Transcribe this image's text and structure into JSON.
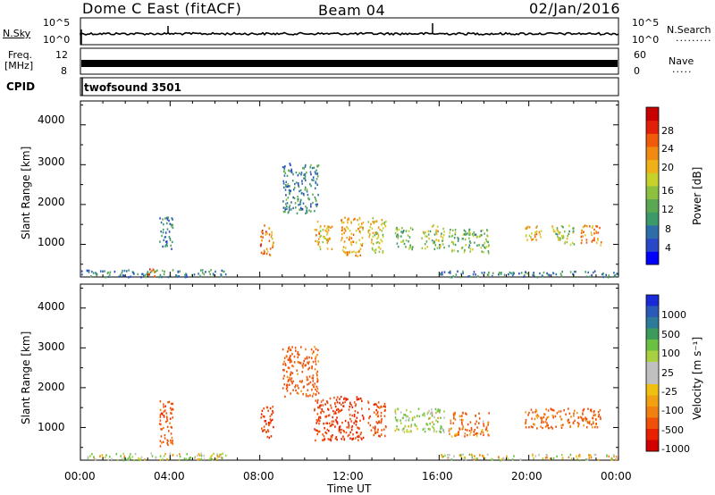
{
  "header": {
    "station": "Dome C East (fitACF)",
    "beam": "Beam 04",
    "date": "02/Jan/2016"
  },
  "noise_panel": {
    "left_label": "N.Sky",
    "left_ticks": [
      "10^5",
      "10^0"
    ],
    "right_label": "N.Search",
    "right_ticks": [
      "10^5",
      "10^0"
    ]
  },
  "freq_panel": {
    "left_label_1": "Freq.",
    "left_label_2": "[MHz]",
    "left_ticks": [
      "12",
      "8"
    ],
    "right_label": "Nave",
    "right_ticks": [
      "60",
      "0"
    ]
  },
  "cpid_panel": {
    "label": "CPID",
    "program": "twofsound 3501"
  },
  "power_panel": {
    "ylabel": "Slant Range [km]",
    "yticks": [
      "4000",
      "3000",
      "2000",
      "1000"
    ],
    "colorbar_label": "Power [dB]",
    "colorbar_ticks": [
      "28",
      "24",
      "20",
      "16",
      "12",
      "8",
      "4"
    ],
    "colorbar_colors": [
      "#0000ff",
      "#2848c8",
      "#2e6ea8",
      "#3c9a6a",
      "#5aa852",
      "#8cc040",
      "#c6d22a",
      "#f0b018",
      "#f08a10",
      "#f05a08",
      "#e02008",
      "#c80000"
    ]
  },
  "velocity_panel": {
    "ylabel": "Slant Range [km]",
    "yticks": [
      "4000",
      "3000",
      "2000",
      "1000"
    ],
    "colorbar_label": "Velocity [m s⁻¹]",
    "colorbar_ticks": [
      "1000",
      "500",
      "100",
      "25",
      "-25",
      "-100",
      "-500",
      "-1000"
    ],
    "colorbar_colors": [
      "#1a2ad8",
      "#2a5ab8",
      "#2e7a9a",
      "#3c9a5a",
      "#6ac040",
      "#a8d040",
      "#c0c0c0",
      "#c0c0c0",
      "#f0c010",
      "#f0a010",
      "#f08010",
      "#f05008",
      "#e82000",
      "#d00000"
    ]
  },
  "xaxis": {
    "label": "Time UT",
    "ticks": [
      "00:00",
      "04:00",
      "08:00",
      "12:00",
      "16:00",
      "20:00",
      "00:00"
    ]
  },
  "chart_data": [
    {
      "type": "heatmap",
      "title": "Power [dB]",
      "xlabel": "Time UT",
      "ylabel": "Slant Range [km]",
      "xlim": [
        0,
        24
      ],
      "ylim": [
        180,
        4600
      ],
      "clim": [
        0,
        30
      ],
      "clusters": [
        {
          "t0": 0.0,
          "t1": 6.5,
          "r0": 200,
          "r1": 380,
          "value": 8
        },
        {
          "t0": 2.9,
          "t1": 3.3,
          "r0": 200,
          "r1": 420,
          "value": 22
        },
        {
          "t0": 3.5,
          "t1": 4.1,
          "r0": 900,
          "r1": 1750,
          "value": 8
        },
        {
          "t0": 8.0,
          "t1": 8.6,
          "r0": 750,
          "r1": 1550,
          "value": 22
        },
        {
          "t0": 9.0,
          "t1": 10.6,
          "r0": 1800,
          "r1": 3050,
          "value": 8
        },
        {
          "t0": 10.4,
          "t1": 11.2,
          "r0": 900,
          "r1": 1600,
          "value": 18
        },
        {
          "t0": 11.6,
          "t1": 12.6,
          "r0": 700,
          "r1": 1700,
          "value": 20
        },
        {
          "t0": 12.8,
          "t1": 13.6,
          "r0": 800,
          "r1": 1700,
          "value": 16
        },
        {
          "t0": 14.0,
          "t1": 14.8,
          "r0": 900,
          "r1": 1500,
          "value": 12
        },
        {
          "t0": 15.2,
          "t1": 16.2,
          "r0": 900,
          "r1": 1500,
          "value": 14
        },
        {
          "t0": 16.4,
          "t1": 18.2,
          "r0": 800,
          "r1": 1400,
          "value": 12
        },
        {
          "t0": 19.8,
          "t1": 20.6,
          "r0": 1100,
          "r1": 1500,
          "value": 18
        },
        {
          "t0": 21.0,
          "t1": 22.0,
          "r0": 1000,
          "r1": 1500,
          "value": 14
        },
        {
          "t0": 22.3,
          "t1": 23.2,
          "r0": 1000,
          "r1": 1500,
          "value": 20
        },
        {
          "t0": 16.0,
          "t1": 24.0,
          "r0": 200,
          "r1": 350,
          "value": 8
        }
      ]
    },
    {
      "type": "heatmap",
      "title": "Velocity [m s⁻¹]",
      "xlabel": "Time UT",
      "ylabel": "Slant Range [km]",
      "xlim": [
        0,
        24
      ],
      "ylim": [
        180,
        4600
      ],
      "clim": [
        -1000,
        1000
      ],
      "clusters": [
        {
          "t0": 0.0,
          "t1": 6.5,
          "r0": 200,
          "r1": 380,
          "value": 60
        },
        {
          "t0": 3.5,
          "t1": 4.1,
          "r0": 500,
          "r1": 1700,
          "value": -200
        },
        {
          "t0": 8.0,
          "t1": 8.6,
          "r0": 750,
          "r1": 1550,
          "value": -300
        },
        {
          "t0": 9.0,
          "t1": 10.6,
          "r0": 1800,
          "r1": 3050,
          "value": -150
        },
        {
          "t0": 10.4,
          "t1": 12.6,
          "r0": 700,
          "r1": 1800,
          "value": -300
        },
        {
          "t0": 12.8,
          "t1": 13.6,
          "r0": 800,
          "r1": 1700,
          "value": -200
        },
        {
          "t0": 14.0,
          "t1": 16.2,
          "r0": 900,
          "r1": 1500,
          "value": 80
        },
        {
          "t0": 16.4,
          "t1": 18.2,
          "r0": 800,
          "r1": 1400,
          "value": -120
        },
        {
          "t0": 19.8,
          "t1": 23.2,
          "r0": 1000,
          "r1": 1500,
          "value": -150
        },
        {
          "t0": 16.0,
          "t1": 24.0,
          "r0": 200,
          "r1": 350,
          "value": 30
        }
      ]
    }
  ]
}
